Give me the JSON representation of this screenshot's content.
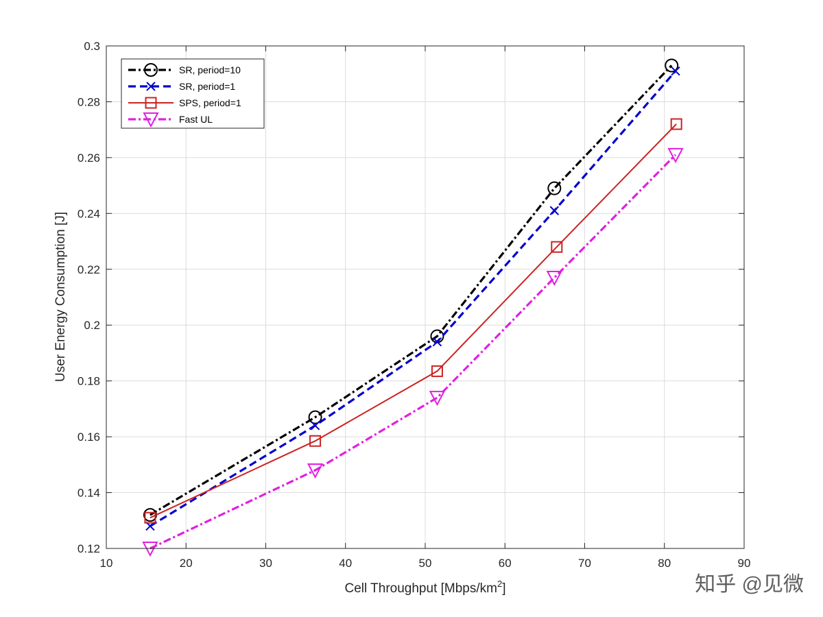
{
  "chart_data": {
    "type": "line",
    "title": "",
    "xlabel": "Cell Throughput [Mbps/km",
    "xlabel_sup": "2",
    "xlabel_end": "]",
    "ylabel": "User Energy Consumption [J]",
    "xlim": [
      10,
      90
    ],
    "ylim": [
      0.12,
      0.3
    ],
    "xticks": [
      10,
      20,
      30,
      40,
      50,
      60,
      70,
      80,
      90
    ],
    "yticks": [
      0.12,
      0.14,
      0.16,
      0.18,
      0.2,
      0.22,
      0.24,
      0.26,
      0.28,
      0.3
    ],
    "xtick_labels": [
      "10",
      "20",
      "30",
      "40",
      "50",
      "60",
      "70",
      "80",
      "90"
    ],
    "ytick_labels": [
      "0.12",
      "0.14",
      "0.16",
      "0.18",
      "0.2",
      "0.22",
      "0.24",
      "0.26",
      "0.28",
      "0.3"
    ],
    "grid": true,
    "legend_position": "top-left",
    "series": [
      {
        "name": "SR, period=10",
        "color": "#000000",
        "dash": "dashdot",
        "marker": "circle",
        "x": [
          15.5,
          36.2,
          51.5,
          66.2,
          80.9
        ],
        "y": [
          0.132,
          0.167,
          0.196,
          0.249,
          0.293
        ]
      },
      {
        "name": "SR, period=1",
        "color": "#0000cc",
        "dash": "dashed",
        "marker": "x",
        "x": [
          15.5,
          36.2,
          51.5,
          66.2,
          81.4
        ],
        "y": [
          0.128,
          0.164,
          0.194,
          0.241,
          0.291
        ]
      },
      {
        "name": "SPS, period=1",
        "color": "#cc2222",
        "dash": "solid",
        "marker": "square",
        "x": [
          15.5,
          36.2,
          51.5,
          66.5,
          81.5
        ],
        "y": [
          0.131,
          0.1585,
          0.1835,
          0.228,
          0.272
        ]
      },
      {
        "name": "Fast UL",
        "color": "#e020e0",
        "dash": "dashdot",
        "marker": "triangle-down",
        "x": [
          15.5,
          36.2,
          51.5,
          66.2,
          81.4
        ],
        "y": [
          0.12,
          0.148,
          0.174,
          0.217,
          0.261
        ]
      }
    ]
  },
  "watermark": "知乎 @见微"
}
